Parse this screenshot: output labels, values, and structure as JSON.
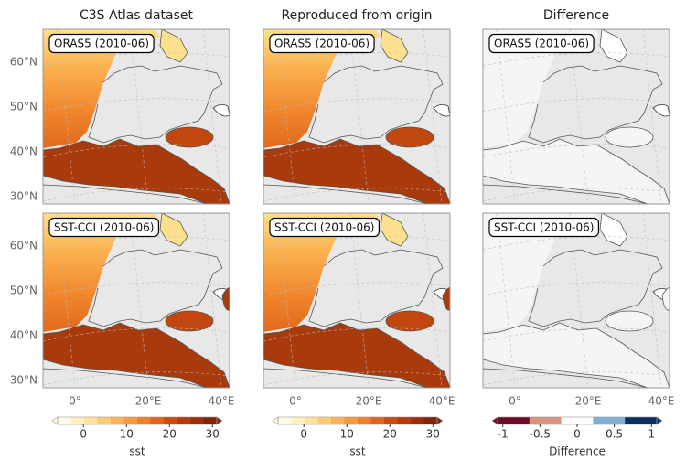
{
  "columns": [
    {
      "title": "C3S Atlas dataset"
    },
    {
      "title": "Reproduced from origin"
    },
    {
      "title": "Difference"
    }
  ],
  "rows": [
    {
      "label": "ORAS5 (2010-06)"
    },
    {
      "label": "SST-CCI (2010-06)"
    }
  ],
  "lat_labels": [
    "60°N",
    "50°N",
    "40°N",
    "30°N"
  ],
  "lon_labels": [
    "0°",
    "20°E",
    "40°E"
  ],
  "colorbars": [
    {
      "label": "sst",
      "range": [
        -6,
        31
      ],
      "ticks": [
        0,
        10,
        20,
        30
      ],
      "colors": [
        "#fffbe6",
        "#fff1bd",
        "#fee39b",
        "#fdcd73",
        "#fdb356",
        "#f99a3d",
        "#f07f2a",
        "#e0651c",
        "#cc4d12",
        "#b53a0c",
        "#9c2e0a",
        "#7f2508"
      ]
    },
    {
      "label": "sst",
      "range": [
        -6,
        31
      ],
      "ticks": [
        0,
        10,
        20,
        30
      ],
      "colors": [
        "#fffbe6",
        "#fff1bd",
        "#fee39b",
        "#fdcd73",
        "#fdb356",
        "#f99a3d",
        "#f07f2a",
        "#e0651c",
        "#cc4d12",
        "#b53a0c",
        "#9c2e0a",
        "#7f2508"
      ]
    },
    {
      "label": "Difference",
      "range": [
        -1.07,
        1.07
      ],
      "ticks": [
        -1,
        -0.5,
        0,
        0.5,
        1
      ],
      "colors": [
        "#6e0b25",
        "#d99580",
        "#ffffff",
        "#7fb0d4",
        "#0b2f5e"
      ]
    }
  ]
}
